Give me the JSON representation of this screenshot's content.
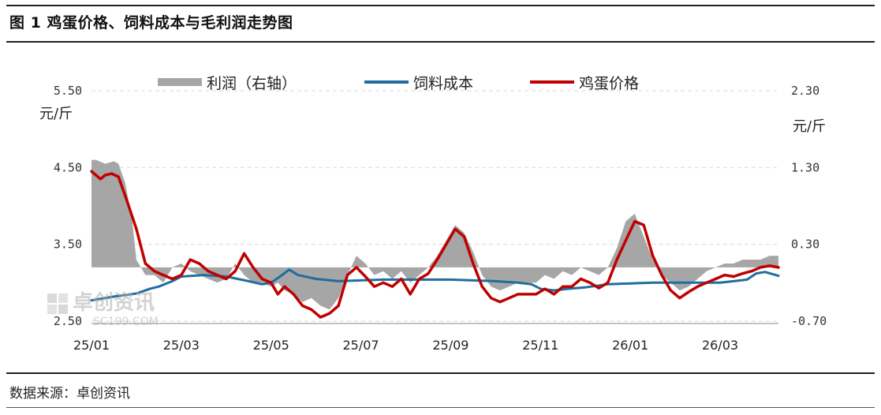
{
  "figure": {
    "title": "图 1 鸡蛋价格、饲料成本与毛利润走势图",
    "source": "数据来源：卓创资讯",
    "watermark": "卓创资讯",
    "watermark_url": "SC199.COM"
  },
  "chart_data": {
    "type": "line",
    "left_axis": {
      "ticks": [
        "5.50",
        "4.50",
        "3.50",
        "2.50"
      ],
      "ylim": [
        2.5,
        5.5
      ],
      "unit": "元/斤"
    },
    "right_axis": {
      "ticks": [
        "2.30",
        "1.30",
        "0.30",
        "-0.70"
      ],
      "ylim": [
        -0.7,
        2.3
      ],
      "unit": "元/斤"
    },
    "x_ticks": [
      "25/01",
      "25/03",
      "25/05",
      "25/07",
      "25/09",
      "25/11",
      "26/01",
      "26/03"
    ],
    "x_range": [
      0,
      15.3
    ],
    "grid": "horizontal dashed",
    "legend_position": "top",
    "series": [
      {
        "name": "利润（右轴）",
        "type": "area",
        "axis": "right",
        "color": "#a6a6a6",
        "x": [
          0,
          0.1,
          0.3,
          0.5,
          0.6,
          0.75,
          0.9,
          1.0,
          1.2,
          1.4,
          1.6,
          1.8,
          2.0,
          2.2,
          2.4,
          2.6,
          2.8,
          3.0,
          3.2,
          3.4,
          3.6,
          3.8,
          4.0,
          4.15,
          4.3,
          4.5,
          4.7,
          4.9,
          5.1,
          5.3,
          5.5,
          5.7,
          5.9,
          6.1,
          6.3,
          6.5,
          6.7,
          6.9,
          7.1,
          7.3,
          7.5,
          7.7,
          7.9,
          8.1,
          8.3,
          8.5,
          8.7,
          8.9,
          9.1,
          9.3,
          9.5,
          9.7,
          9.9,
          10.1,
          10.3,
          10.5,
          10.7,
          10.9,
          11.1,
          11.3,
          11.5,
          11.7,
          11.9,
          12.1,
          12.3,
          12.5,
          12.7,
          12.9,
          13.1,
          13.3,
          13.5,
          13.7,
          13.9,
          14.1,
          14.3,
          14.5,
          14.7,
          14.9,
          15.1,
          15.3
        ],
        "values": [
          1.4,
          1.4,
          1.35,
          1.38,
          1.35,
          1.1,
          0.65,
          0.1,
          -0.1,
          -0.1,
          -0.2,
          0.0,
          0.05,
          -0.05,
          -0.1,
          -0.15,
          -0.2,
          -0.15,
          0.05,
          -0.1,
          -0.2,
          -0.2,
          -0.25,
          -0.2,
          -0.3,
          -0.35,
          -0.45,
          -0.4,
          -0.5,
          -0.55,
          -0.4,
          -0.1,
          0.15,
          0.05,
          -0.1,
          -0.05,
          -0.15,
          -0.05,
          -0.2,
          -0.1,
          0.0,
          0.15,
          0.35,
          0.55,
          0.45,
          0.2,
          -0.1,
          -0.25,
          -0.3,
          -0.25,
          -0.2,
          -0.2,
          -0.2,
          -0.1,
          -0.15,
          -0.05,
          -0.1,
          0.0,
          -0.05,
          -0.1,
          0.0,
          0.25,
          0.6,
          0.7,
          0.4,
          0.1,
          -0.1,
          -0.2,
          -0.3,
          -0.25,
          -0.15,
          -0.05,
          0.0,
          0.05,
          0.05,
          0.1,
          0.1,
          0.1,
          0.15,
          0.15
        ]
      },
      {
        "name": "饲料成本",
        "type": "line",
        "axis": "left",
        "color": "#1f6e9e",
        "x": [
          0,
          0.5,
          1.0,
          1.3,
          1.5,
          1.8,
          2.0,
          2.5,
          3.0,
          3.5,
          3.8,
          4.0,
          4.2,
          4.4,
          4.6,
          5.0,
          5.5,
          6.0,
          6.5,
          7.0,
          7.5,
          8.0,
          8.5,
          9.0,
          9.5,
          9.8,
          10.0,
          10.3,
          10.6,
          11.0,
          11.5,
          12.0,
          12.5,
          13.0,
          13.5,
          14.0,
          14.3,
          14.6,
          14.8,
          15.0,
          15.3
        ],
        "values": [
          2.77,
          2.82,
          2.86,
          2.92,
          2.95,
          3.02,
          3.08,
          3.1,
          3.08,
          3.02,
          2.98,
          3.0,
          3.08,
          3.17,
          3.1,
          3.05,
          3.02,
          3.03,
          3.04,
          3.04,
          3.04,
          3.04,
          3.03,
          3.02,
          3.0,
          2.98,
          2.92,
          2.9,
          2.92,
          2.94,
          2.98,
          2.99,
          3.0,
          3.0,
          3.0,
          3.0,
          3.02,
          3.04,
          3.12,
          3.14,
          3.09
        ]
      },
      {
        "name": "鸡蛋价格",
        "type": "line",
        "axis": "left",
        "color": "#c00000",
        "x": [
          0,
          0.2,
          0.3,
          0.45,
          0.6,
          0.8,
          1.0,
          1.2,
          1.4,
          1.6,
          1.8,
          2.0,
          2.2,
          2.4,
          2.6,
          2.8,
          3.0,
          3.2,
          3.4,
          3.6,
          3.8,
          4.0,
          4.15,
          4.3,
          4.5,
          4.7,
          4.9,
          5.1,
          5.3,
          5.5,
          5.7,
          5.9,
          6.1,
          6.3,
          6.5,
          6.7,
          6.9,
          7.1,
          7.3,
          7.5,
          7.7,
          7.9,
          8.1,
          8.3,
          8.5,
          8.7,
          8.9,
          9.1,
          9.3,
          9.5,
          9.7,
          9.9,
          10.1,
          10.3,
          10.5,
          10.7,
          10.9,
          11.1,
          11.3,
          11.5,
          11.7,
          11.9,
          12.1,
          12.3,
          12.5,
          12.7,
          12.9,
          13.1,
          13.3,
          13.5,
          13.7,
          13.9,
          14.1,
          14.3,
          14.5,
          14.7,
          14.9,
          15.1,
          15.3
        ],
        "values": [
          4.45,
          4.35,
          4.4,
          4.42,
          4.38,
          4.05,
          3.7,
          3.25,
          3.15,
          3.1,
          3.05,
          3.1,
          3.3,
          3.25,
          3.15,
          3.1,
          3.05,
          3.15,
          3.38,
          3.2,
          3.05,
          3.0,
          2.85,
          2.95,
          2.85,
          2.7,
          2.65,
          2.55,
          2.6,
          2.7,
          3.1,
          3.2,
          3.08,
          2.95,
          3.0,
          2.95,
          3.05,
          2.85,
          3.05,
          3.12,
          3.3,
          3.5,
          3.7,
          3.6,
          3.25,
          2.95,
          2.8,
          2.75,
          2.8,
          2.85,
          2.85,
          2.85,
          2.92,
          2.85,
          2.95,
          2.95,
          3.05,
          3.0,
          2.93,
          3.0,
          3.3,
          3.55,
          3.8,
          3.75,
          3.35,
          3.1,
          2.9,
          2.8,
          2.88,
          2.95,
          3.0,
          3.05,
          3.1,
          3.08,
          3.12,
          3.15,
          3.2,
          3.22,
          3.2
        ]
      }
    ]
  }
}
